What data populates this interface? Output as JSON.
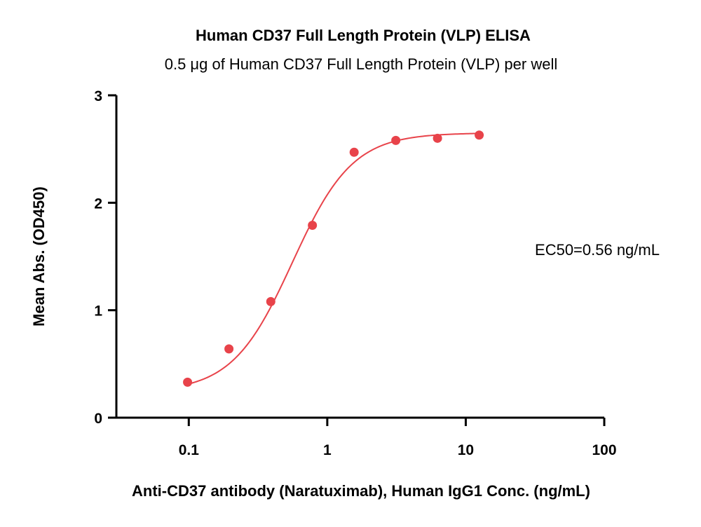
{
  "chart_data": {
    "type": "scatter",
    "title": "Human CD37 Full Length Protein (VLP) ELISA",
    "subtitle": "0.5 μg of Human CD37 Full Length Protein (VLP) per well",
    "xlabel": "Anti-CD37 antibody (Naratuximab), Human IgG1 Conc. (ng/mL)",
    "ylabel": "Mean Abs. (OD450)",
    "x_scale": "log",
    "xlim": [
      0.03,
      100
    ],
    "ylim": [
      0,
      3
    ],
    "x_ticks": [
      0.1,
      1,
      10,
      100
    ],
    "x_tick_labels": [
      "0.1",
      "1",
      "10",
      "100"
    ],
    "y_ticks": [
      0,
      1,
      2,
      3
    ],
    "y_tick_labels": [
      "0",
      "1",
      "2",
      "3"
    ],
    "grid": false,
    "annotation": "EC50=0.56 ng/mL",
    "series_color": "#e8434a",
    "series": [
      {
        "x": [
          0.098,
          0.195,
          0.391,
          0.781,
          1.563,
          3.125,
          6.25,
          12.5
        ],
        "y": [
          0.33,
          0.64,
          1.08,
          1.79,
          2.47,
          2.58,
          2.6,
          2.63
        ],
        "fit": {
          "model": "4PL",
          "bottom": 0.24,
          "top": 2.65,
          "ec50": 0.56,
          "hill": 2.0
        }
      }
    ]
  }
}
